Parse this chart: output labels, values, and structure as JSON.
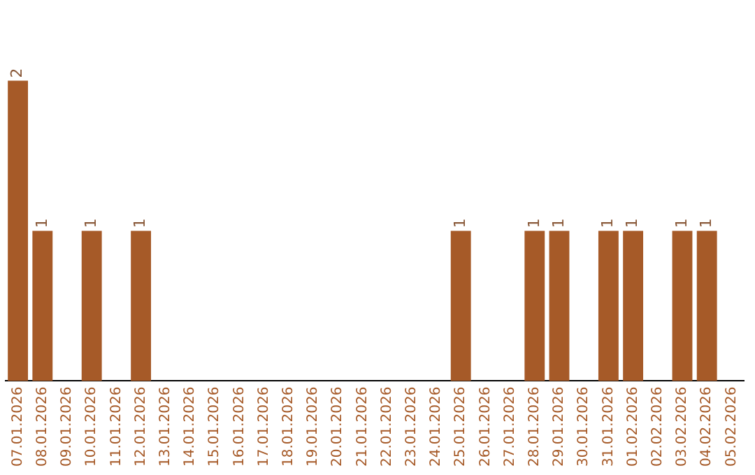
{
  "chart_data": {
    "type": "bar",
    "categories": [
      "07.01.2026",
      "08.01.2026",
      "09.01.2026",
      "10.01.2026",
      "11.01.2026",
      "12.01.2026",
      "13.01.2026",
      "14.01.2026",
      "15.01.2026",
      "16.01.2026",
      "17.01.2026",
      "18.01.2026",
      "19.01.2026",
      "20.01.2026",
      "21.01.2026",
      "22.01.2026",
      "23.01.2026",
      "24.01.2026",
      "25.01.2026",
      "26.01.2026",
      "27.01.2026",
      "28.01.2026",
      "29.01.2026",
      "30.01.2026",
      "31.01.2026",
      "01.02.2026",
      "02.02.2026",
      "03.02.2026",
      "04.02.2026",
      "05.02.2026"
    ],
    "values": [
      2,
      1,
      0,
      1,
      0,
      1,
      0,
      0,
      0,
      0,
      0,
      0,
      0,
      0,
      0,
      0,
      0,
      0,
      1,
      0,
      0,
      1,
      1,
      0,
      1,
      1,
      0,
      1,
      1,
      0
    ],
    "value_labels": [
      "2",
      "1",
      null,
      "1",
      null,
      "1",
      null,
      null,
      null,
      null,
      null,
      null,
      null,
      null,
      null,
      null,
      null,
      null,
      "1",
      null,
      null,
      "1",
      "1",
      null,
      "1",
      "1",
      null,
      "1",
      "1",
      null
    ],
    "color": "#a65a28",
    "grid": false,
    "legend": false
  }
}
